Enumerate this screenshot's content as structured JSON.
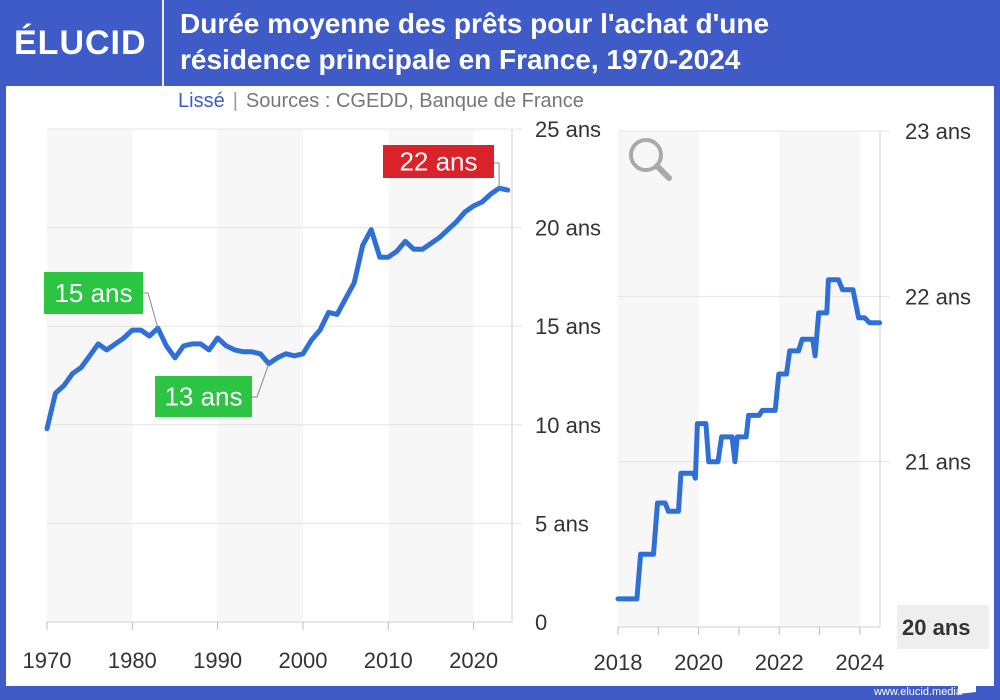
{
  "header": {
    "logo": "ÉLUCID",
    "title_line1": "Durée moyenne des prêts pour l'achat d'une",
    "title_line2": "résidence principale en France, 1970-2024"
  },
  "subtitle": {
    "mode": "Lissé",
    "separator": "|",
    "sources": "Sources : CGEDD, Banque de France"
  },
  "footer": "www.elucid.media",
  "colors": {
    "brand": "#3f5bc8",
    "line": "#2f6fd6",
    "red": "#d92229",
    "green": "#2bc443",
    "band": "#f7f7f7"
  },
  "icons": {
    "zoom": "magnifier-icon"
  },
  "chart_data": [
    {
      "type": "line",
      "xlim": [
        1970,
        2024.5
      ],
      "ylim": [
        0,
        25
      ],
      "x_ticks": [
        "1970",
        "1980",
        "1990",
        "2000",
        "2010",
        "2020"
      ],
      "y_ticks": [
        "0",
        "5 ans",
        "10 ans",
        "15 ans",
        "20 ans",
        "25 ans"
      ],
      "grid": true,
      "x": [
        1970,
        1971,
        1972,
        1973,
        1974,
        1975,
        1976,
        1977,
        1978,
        1979,
        1980,
        1981,
        1982,
        1983,
        1984,
        1985,
        1986,
        1987,
        1988,
        1989,
        1990,
        1991,
        1992,
        1993,
        1994,
        1995,
        1996,
        1997,
        1998,
        1999,
        2000,
        2001,
        2002,
        2003,
        2004,
        2005,
        2006,
        2007,
        2008,
        2009,
        2010,
        2011,
        2012,
        2013,
        2014,
        2015,
        2016,
        2017,
        2018,
        2019,
        2020,
        2021,
        2022,
        2023,
        2024
      ],
      "values": [
        9.8,
        11.6,
        12.0,
        12.6,
        12.9,
        13.5,
        14.1,
        13.8,
        14.1,
        14.4,
        14.8,
        14.8,
        14.5,
        14.9,
        14.0,
        13.4,
        14.0,
        14.1,
        14.1,
        13.8,
        14.4,
        14.0,
        13.8,
        13.7,
        13.7,
        13.6,
        13.1,
        13.4,
        13.6,
        13.5,
        13.6,
        14.3,
        14.8,
        15.7,
        15.6,
        16.4,
        17.2,
        19.1,
        19.9,
        18.5,
        18.5,
        18.8,
        19.3,
        18.9,
        18.9,
        19.2,
        19.5,
        19.9,
        20.3,
        20.8,
        21.1,
        21.3,
        21.7,
        22.0,
        21.9
      ],
      "annotations": [
        {
          "text": "15 ans",
          "x": 1983,
          "y": 14.9,
          "color": "green"
        },
        {
          "text": "13 ans",
          "x": 1996,
          "y": 13.1,
          "color": "green"
        },
        {
          "text": "22 ans",
          "x": 2023,
          "y": 22.0,
          "color": "red"
        }
      ]
    },
    {
      "type": "line",
      "xlim": [
        2018,
        2024.5
      ],
      "ylim": [
        20,
        23
      ],
      "x_ticks": [
        "2018",
        "2020",
        "2022",
        "2024"
      ],
      "y_ticks": [
        "20 ans",
        "21 ans",
        "22 ans",
        "23 ans"
      ],
      "grid": true,
      "x": [
        2018.0,
        2018.47,
        2018.56,
        2018.88,
        2018.98,
        2019.17,
        2019.25,
        2019.5,
        2019.56,
        2019.87,
        2019.92,
        2019.97,
        2020.18,
        2020.25,
        2020.48,
        2020.57,
        2020.83,
        2020.9,
        2020.96,
        2021.18,
        2021.24,
        2021.5,
        2021.58,
        2021.9,
        2021.99,
        2022.18,
        2022.26,
        2022.48,
        2022.57,
        2022.83,
        2022.89,
        2022.98,
        2023.18,
        2023.22,
        2023.47,
        2023.57,
        2023.83,
        2023.97,
        2024.12,
        2024.24,
        2024.49
      ],
      "values": [
        20.17,
        20.17,
        20.44,
        20.44,
        20.75,
        20.75,
        20.7,
        20.7,
        20.93,
        20.93,
        20.9,
        21.23,
        21.23,
        21.0,
        21.0,
        21.15,
        21.15,
        21.0,
        21.15,
        21.15,
        21.28,
        21.28,
        21.31,
        21.31,
        21.53,
        21.53,
        21.67,
        21.67,
        21.74,
        21.74,
        21.64,
        21.9,
        21.9,
        22.1,
        22.1,
        22.04,
        22.04,
        21.87,
        21.87,
        21.84,
        21.84
      ]
    }
  ]
}
